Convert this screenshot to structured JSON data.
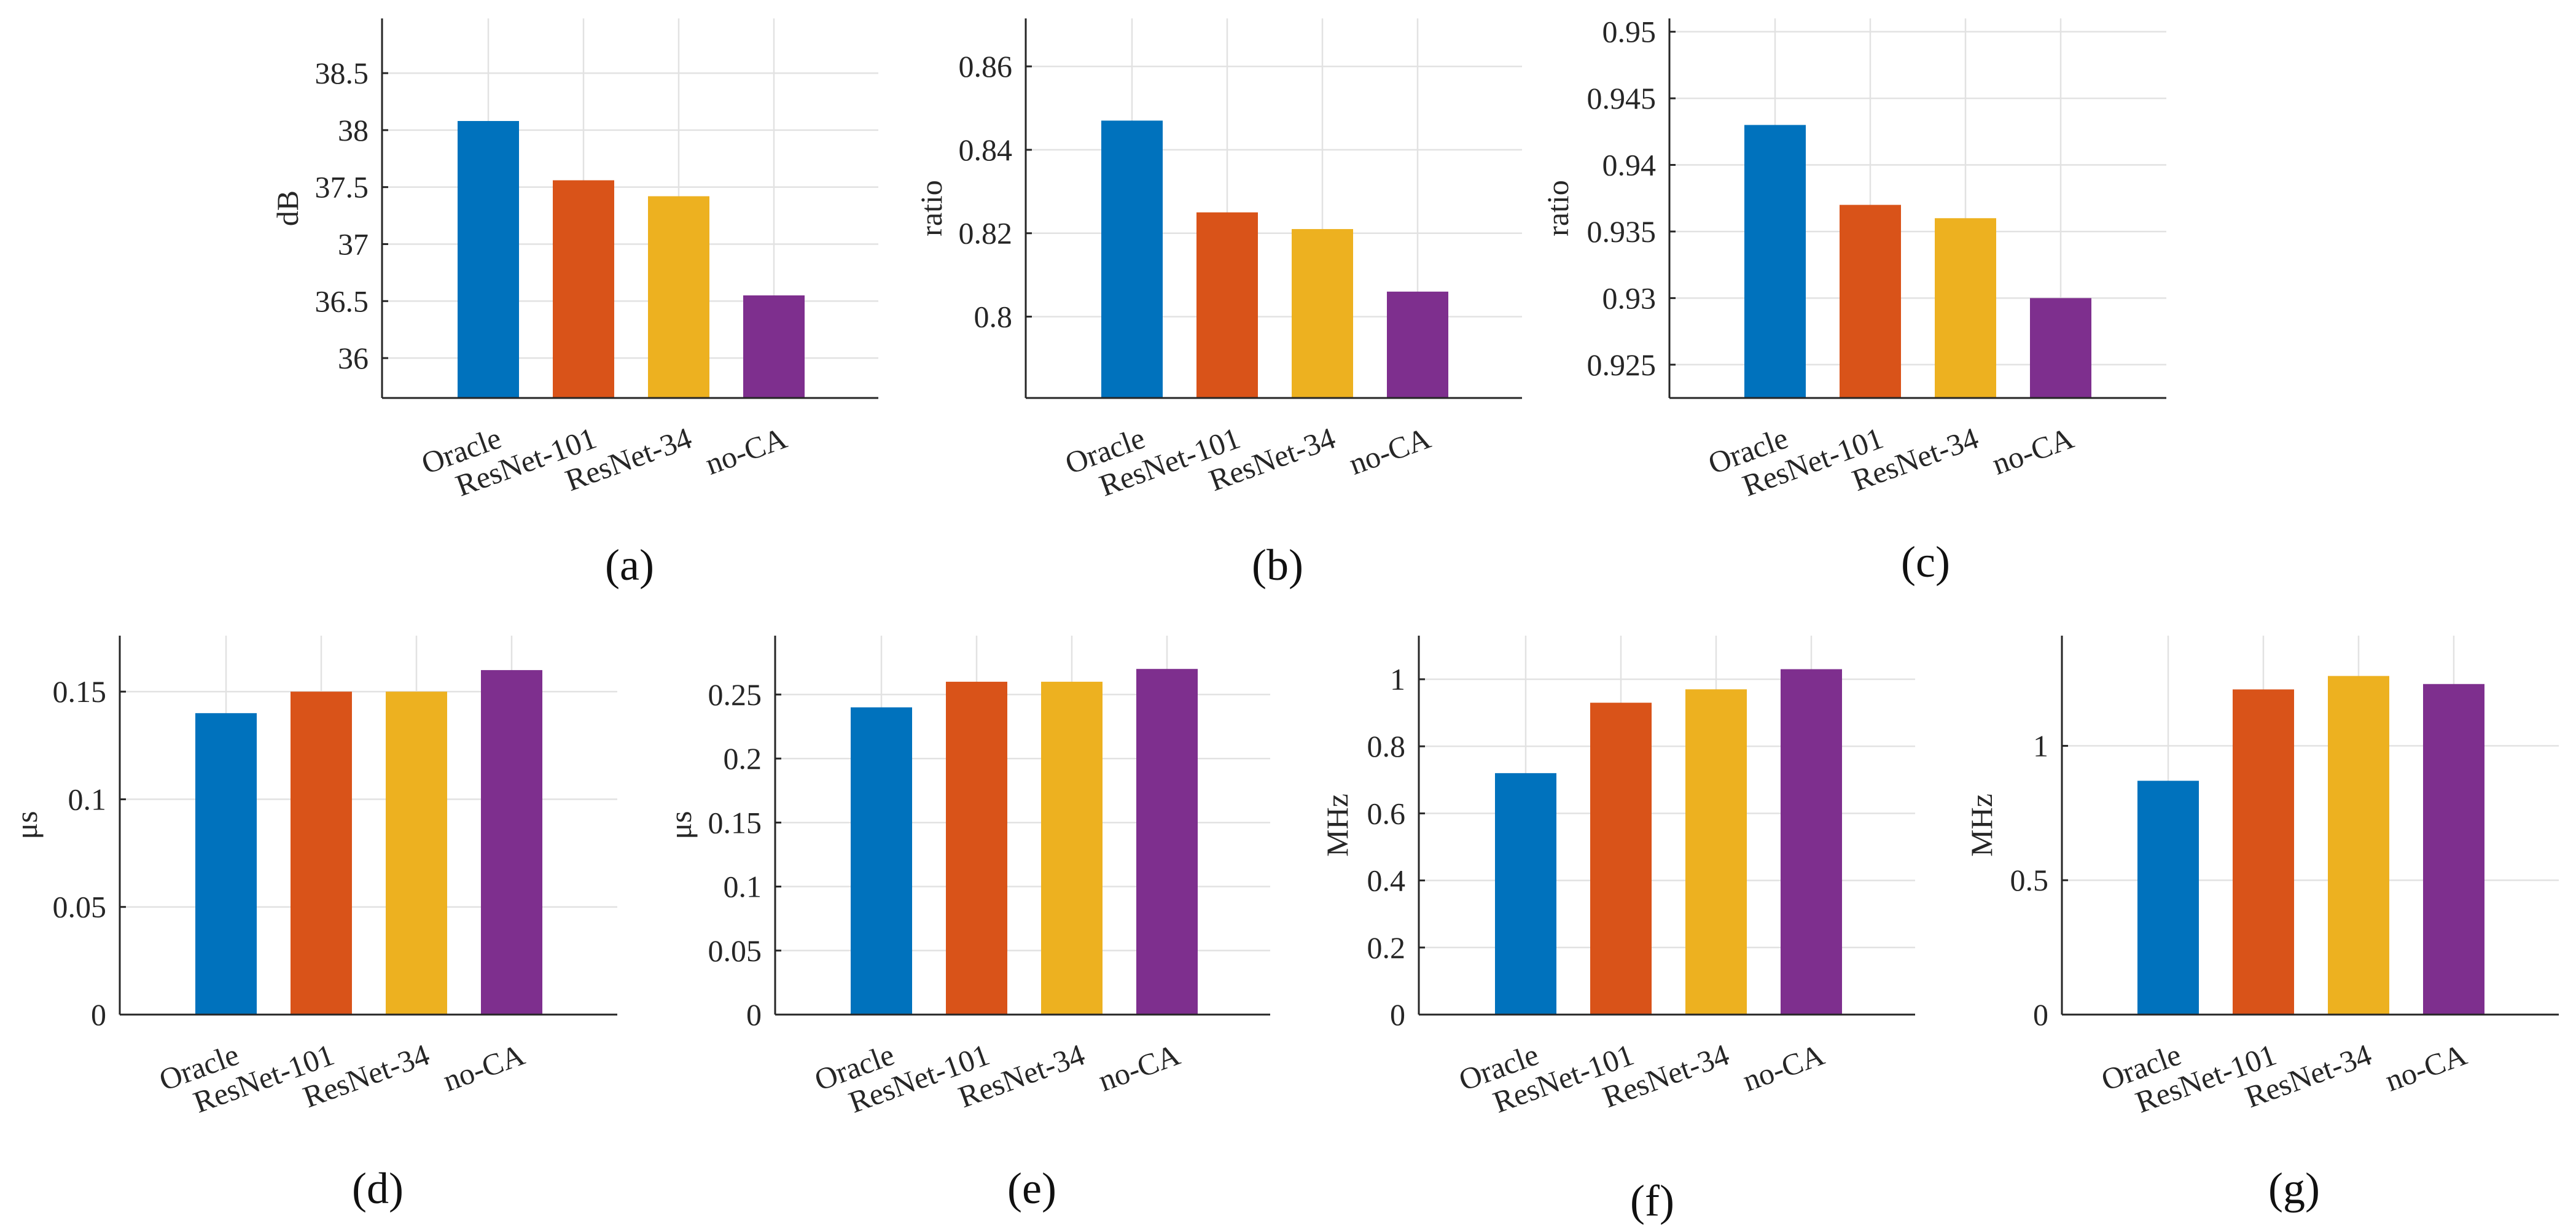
{
  "chart_data": [
    {
      "type": "bar",
      "panel_label": "(a)",
      "categories": [
        "Oracle",
        "ResNet-101",
        "ResNet-34",
        "no-CA"
      ],
      "values": [
        38.08,
        37.56,
        37.42,
        36.55
      ],
      "ylabel": "dB",
      "ylim": [
        35.65,
        38.98
      ],
      "yticks": [
        36,
        36.5,
        37,
        37.5,
        38,
        38.5
      ],
      "ytick_labels": [
        "36",
        "36.5",
        "37",
        "37.5",
        "38",
        "38.5"
      ],
      "grid": true
    },
    {
      "type": "bar",
      "panel_label": "(b)",
      "categories": [
        "Oracle",
        "ResNet-101",
        "ResNet-34",
        "no-CA"
      ],
      "values": [
        0.847,
        0.825,
        0.821,
        0.806
      ],
      "ylabel": "ratio",
      "ylim": [
        0.7805,
        0.8715
      ],
      "yticks": [
        0.8,
        0.82,
        0.84,
        0.86
      ],
      "ytick_labels": [
        "0.8",
        "0.82",
        "0.84",
        "0.86"
      ],
      "grid": true
    },
    {
      "type": "bar",
      "panel_label": "(c)",
      "categories": [
        "Oracle",
        "ResNet-101",
        "ResNet-34",
        "no-CA"
      ],
      "values": [
        0.943,
        0.937,
        0.936,
        0.93
      ],
      "ylabel": "ratio",
      "ylim": [
        0.9225,
        0.951
      ],
      "yticks": [
        0.925,
        0.93,
        0.935,
        0.94,
        0.945,
        0.95
      ],
      "ytick_labels": [
        "0.925",
        "0.93",
        "0.935",
        "0.94",
        "0.945",
        "0.95"
      ],
      "grid": true
    },
    {
      "type": "bar",
      "panel_label": "(d)",
      "categories": [
        "Oracle",
        "ResNet-101",
        "ResNet-34",
        "no-CA"
      ],
      "values": [
        0.14,
        0.15,
        0.15,
        0.16
      ],
      "ylabel": "μs",
      "ylim": [
        0,
        0.176
      ],
      "yticks": [
        0,
        0.05,
        0.1,
        0.15
      ],
      "ytick_labels": [
        "0",
        "0.05",
        "0.1",
        "0.15"
      ],
      "grid": true
    },
    {
      "type": "bar",
      "panel_label": "(e)",
      "categories": [
        "Oracle",
        "ResNet-101",
        "ResNet-34",
        "no-CA"
      ],
      "values": [
        0.24,
        0.26,
        0.26,
        0.27
      ],
      "ylabel": "μs",
      "ylim": [
        0,
        0.296
      ],
      "yticks": [
        0,
        0.05,
        0.1,
        0.15,
        0.2,
        0.25
      ],
      "ytick_labels": [
        "0",
        "0.05",
        "0.1",
        "0.15",
        "0.2",
        "0.25"
      ],
      "grid": true
    },
    {
      "type": "bar",
      "panel_label": "(f)",
      "categories": [
        "Oracle",
        "ResNet-101",
        "ResNet-34",
        "no-CA"
      ],
      "values": [
        0.72,
        0.93,
        0.97,
        1.03
      ],
      "ylabel": "MHz",
      "ylim": [
        0,
        1.13
      ],
      "yticks": [
        0,
        0.2,
        0.4,
        0.6,
        0.8,
        1
      ],
      "ytick_labels": [
        "0",
        "0.2",
        "0.4",
        "0.6",
        "0.8",
        "1"
      ],
      "grid": true
    },
    {
      "type": "bar",
      "panel_label": "(g)",
      "categories": [
        "Oracle",
        "ResNet-101",
        "ResNet-34",
        "no-CA"
      ],
      "values": [
        0.87,
        1.21,
        1.26,
        1.23
      ],
      "ylabel": "MHz",
      "ylim": [
        0,
        1.41
      ],
      "yticks": [
        0,
        0.5,
        1
      ],
      "ytick_labels": [
        "0",
        "0.5",
        "1"
      ],
      "grid": true
    }
  ],
  "colors": {
    "Oracle": "#0072BD",
    "ResNet-101": "#D95319",
    "ResNet-34": "#EDB120",
    "no-CA": "#7E2F8E"
  }
}
